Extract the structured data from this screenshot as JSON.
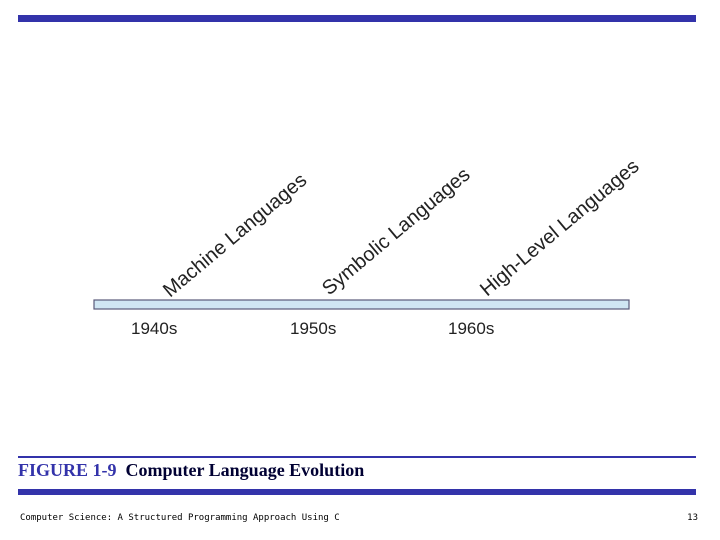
{
  "diagram": {
    "eras": [
      {
        "label": "Machine Languages"
      },
      {
        "label": "Symbolic Languages"
      },
      {
        "label": "High-Level Languages"
      }
    ],
    "decades": [
      "1940s",
      "1950s",
      "1960s"
    ],
    "colors": {
      "accent": "#3333aa",
      "timeline_fill": "#cfe6f3",
      "timeline_stroke": "#5a5a7a",
      "text": "#222222"
    }
  },
  "caption": {
    "figure_number": "FIGURE 1-9",
    "title": "Computer Language Evolution"
  },
  "footer": {
    "book_title": "Computer Science: A Structured Programming Approach Using C",
    "page_number": "13"
  }
}
